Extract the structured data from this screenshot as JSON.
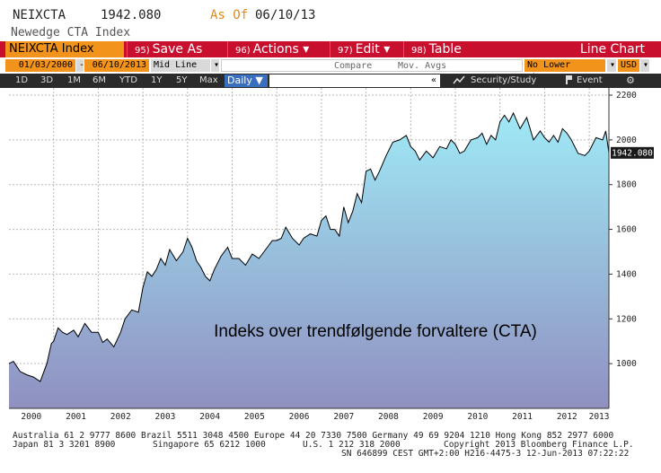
{
  "header": {
    "ticker": "NEIXCTA",
    "price": "1942.080",
    "asof_label": "As Of",
    "asof_date": "06/10/13",
    "name": "Newedge CTA Index"
  },
  "toolbar": {
    "index_label": "NEIXCTA Index",
    "buttons": [
      {
        "num": "95)",
        "label": "Save As"
      },
      {
        "num": "96)",
        "label": "Actions ▾"
      },
      {
        "num": "97)",
        "label": "Edit ▾"
      },
      {
        "num": "98)",
        "label": "Table"
      }
    ],
    "chart_type": "Line Chart"
  },
  "controls": {
    "start_date": "01/03/2000",
    "end_date": "06/10/2013",
    "price_field": "Mid Line",
    "compare": "Compare",
    "moving_avgs": "Mov. Avgs",
    "lower_chart": "No Lower Chart",
    "currency": "USD"
  },
  "periods": {
    "items": [
      "1D",
      "3D",
      "1M",
      "6M",
      "YTD",
      "1Y",
      "5Y",
      "Max"
    ],
    "selected": "Daily ▼",
    "search_arrow": "«",
    "security_study": "Security/Study",
    "event": "Event"
  },
  "chart_data": {
    "type": "area",
    "title": "Indeks over trendfølgende forvaltere (CTA)",
    "x": [
      2000.0,
      2000.1,
      2000.25,
      2000.4,
      2000.55,
      2000.7,
      2000.85,
      2000.95,
      2001.0,
      2001.1,
      2001.2,
      2001.3,
      2001.45,
      2001.55,
      2001.7,
      2001.85,
      2002.0,
      2002.1,
      2002.2,
      2002.35,
      2002.5,
      2002.6,
      2002.75,
      2002.9,
      2003.0,
      2003.1,
      2003.2,
      2003.3,
      2003.4,
      2003.5,
      2003.6,
      2003.75,
      2003.9,
      2004.0,
      2004.1,
      2004.2,
      2004.3,
      2004.4,
      2004.5,
      2004.6,
      2004.75,
      2004.9,
      2005.0,
      2005.15,
      2005.3,
      2005.45,
      2005.6,
      2005.75,
      2005.9,
      2006.0,
      2006.1,
      2006.2,
      2006.35,
      2006.5,
      2006.6,
      2006.75,
      2006.9,
      2007.0,
      2007.1,
      2007.2,
      2007.3,
      2007.4,
      2007.5,
      2007.6,
      2007.7,
      2007.8,
      2007.9,
      2008.0,
      2008.1,
      2008.2,
      2008.3,
      2008.45,
      2008.6,
      2008.75,
      2008.9,
      2009.0,
      2009.1,
      2009.2,
      2009.35,
      2009.5,
      2009.65,
      2009.8,
      2009.9,
      2010.0,
      2010.1,
      2010.2,
      2010.35,
      2010.5,
      2010.6,
      2010.7,
      2010.8,
      2010.9,
      2011.0,
      2011.1,
      2011.2,
      2011.3,
      2011.45,
      2011.6,
      2011.75,
      2011.9,
      2012.0,
      2012.1,
      2012.2,
      2012.3,
      2012.4,
      2012.5,
      2012.6,
      2012.75,
      2012.9,
      2013.0,
      2013.15,
      2013.3,
      2013.37,
      2013.44
    ],
    "y": [
      1000,
      1010,
      965,
      950,
      940,
      920,
      1000,
      1090,
      1100,
      1160,
      1140,
      1130,
      1150,
      1120,
      1180,
      1140,
      1140,
      1095,
      1110,
      1075,
      1140,
      1200,
      1240,
      1230,
      1340,
      1410,
      1390,
      1420,
      1470,
      1440,
      1510,
      1460,
      1500,
      1560,
      1520,
      1460,
      1430,
      1390,
      1370,
      1420,
      1480,
      1520,
      1470,
      1470,
      1440,
      1490,
      1470,
      1510,
      1550,
      1550,
      1560,
      1610,
      1560,
      1530,
      1560,
      1580,
      1570,
      1640,
      1660,
      1600,
      1600,
      1570,
      1700,
      1630,
      1680,
      1760,
      1720,
      1860,
      1870,
      1820,
      1860,
      1930,
      1990,
      2000,
      2020,
      1970,
      1950,
      1910,
      1950,
      1920,
      1970,
      1960,
      2000,
      1980,
      1940,
      1950,
      2000,
      2010,
      2030,
      1980,
      2020,
      2000,
      2080,
      2110,
      2080,
      2120,
      2050,
      2100,
      2000,
      2040,
      2010,
      1990,
      2020,
      1990,
      2050,
      2030,
      2000,
      1940,
      1930,
      1950,
      2010,
      2000,
      2040,
      1942
    ],
    "year_labels": [
      "2000",
      "2001",
      "2002",
      "2003",
      "2004",
      "2005",
      "2006",
      "2007",
      "2008",
      "2009",
      "2010",
      "2011",
      "2012",
      "2013"
    ],
    "y_ticks": [
      "1000",
      "1200",
      "1400",
      "1600",
      "1800",
      "2000",
      "2200"
    ],
    "ylim": [
      800,
      2200
    ],
    "xlim": [
      2000.0,
      2013.44
    ],
    "last_value_label": "1942.080",
    "grid": true,
    "colors": {
      "area_top": "#9fe9f6",
      "area_bottom": "#9090c0",
      "line": "#000000"
    }
  },
  "footer": {
    "line1": "Australia 61 2 9777 8600 Brazil 5511 3048 4500 Europe 44 20 7330 7500 Germany 49 69 9204 1210 Hong Kong 852 2977 6000",
    "line2a": "Japan 81 3 3201 8900",
    "line2b": "Singapore 65 6212 1000",
    "line2c": "U.S. 1 212 318 2000",
    "line2d": "Copyright 2013 Bloomberg Finance L.P.",
    "line3": "SN 646899 CEST GMT+2:00 H216-4475-3 12-Jun-2013 07:22:22"
  }
}
